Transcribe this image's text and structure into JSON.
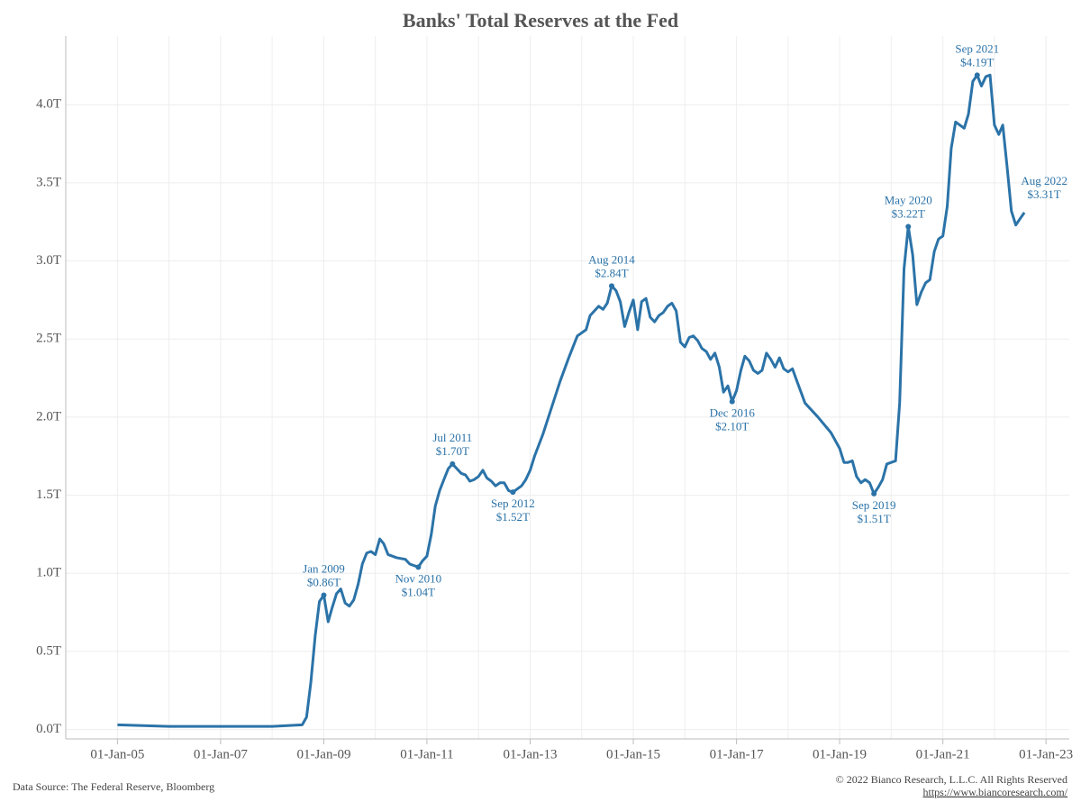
{
  "chart_data": {
    "type": "line",
    "title": "Banks' Total Reserves at the Fed",
    "source": "Data Source: The Federal Reserve, Bloomberg",
    "copyright": "© 2022 Bianco Research, L.L.C. All Rights Reserved",
    "url": "https://www.biancoresearch.com/",
    "xlim": [
      "2004-01-01",
      "2023-06-15"
    ],
    "xticks": [
      {
        "value": "2005-01-01",
        "label": "01-Jan-05"
      },
      {
        "value": "2007-01-01",
        "label": "01-Jan-07"
      },
      {
        "value": "2009-01-01",
        "label": "01-Jan-09"
      },
      {
        "value": "2011-01-01",
        "label": "01-Jan-11"
      },
      {
        "value": "2013-01-01",
        "label": "01-Jan-13"
      },
      {
        "value": "2015-01-01",
        "label": "01-Jan-15"
      },
      {
        "value": "2017-01-01",
        "label": "01-Jan-17"
      },
      {
        "value": "2019-01-01",
        "label": "01-Jan-19"
      },
      {
        "value": "2021-01-01",
        "label": "01-Jan-21"
      },
      {
        "value": "2023-01-01",
        "label": "01-Jan-23"
      }
    ],
    "xgrid_minor": [
      "2004-01-01",
      "2006-01-01",
      "2008-01-01",
      "2010-01-01",
      "2012-01-01",
      "2014-01-01",
      "2016-01-01",
      "2018-01-01",
      "2020-01-01",
      "2022-01-01"
    ],
    "ylim": [
      -0.06,
      4.44
    ],
    "yticks": [
      {
        "value": 0,
        "label": "0.0T"
      },
      {
        "value": 0.5,
        "label": "0.5T"
      },
      {
        "value": 1,
        "label": "1.0T"
      },
      {
        "value": 1.5,
        "label": "1.5T"
      },
      {
        "value": 2,
        "label": "2.0T"
      },
      {
        "value": 2.5,
        "label": "2.5T"
      },
      {
        "value": 3,
        "label": "3.0T"
      },
      {
        "value": 3.5,
        "label": "3.5T"
      },
      {
        "value": 4,
        "label": "4.0T"
      }
    ],
    "grid": true,
    "x": [
      "2005-01-01",
      "2006-01-01",
      "2007-01-01",
      "2008-01-01",
      "2008-08-01",
      "2008-09-01",
      "2008-10-01",
      "2008-11-01",
      "2008-12-01",
      "2009-01-01",
      "2009-02-01",
      "2009-03-01",
      "2009-04-01",
      "2009-05-01",
      "2009-06-01",
      "2009-07-01",
      "2009-08-01",
      "2009-09-01",
      "2009-10-01",
      "2009-11-01",
      "2009-12-01",
      "2010-01-01",
      "2010-02-01",
      "2010-03-01",
      "2010-04-01",
      "2010-06-01",
      "2010-08-01",
      "2010-09-01",
      "2010-10-01",
      "2010-11-01",
      "2010-12-01",
      "2011-01-01",
      "2011-02-01",
      "2011-03-01",
      "2011-04-01",
      "2011-05-01",
      "2011-06-01",
      "2011-07-01",
      "2011-08-01",
      "2011-09-01",
      "2011-10-01",
      "2011-11-01",
      "2011-12-01",
      "2012-01-01",
      "2012-02-01",
      "2012-03-01",
      "2012-04-01",
      "2012-05-01",
      "2012-06-01",
      "2012-07-01",
      "2012-08-01",
      "2012-09-01",
      "2012-10-01",
      "2012-11-01",
      "2012-12-01",
      "2013-01-01",
      "2013-02-01",
      "2013-04-01",
      "2013-06-01",
      "2013-08-01",
      "2013-10-01",
      "2013-12-01",
      "2014-02-01",
      "2014-03-01",
      "2014-05-01",
      "2014-06-01",
      "2014-07-01",
      "2014-08-01",
      "2014-09-01",
      "2014-10-01",
      "2014-11-01",
      "2014-12-01",
      "2015-01-01",
      "2015-02-01",
      "2015-03-01",
      "2015-04-01",
      "2015-05-01",
      "2015-06-01",
      "2015-07-01",
      "2015-08-01",
      "2015-09-01",
      "2015-10-01",
      "2015-11-01",
      "2015-12-01",
      "2016-01-01",
      "2016-02-01",
      "2016-03-01",
      "2016-04-01",
      "2016-05-01",
      "2016-06-01",
      "2016-07-01",
      "2016-08-01",
      "2016-09-01",
      "2016-10-01",
      "2016-11-01",
      "2016-12-01",
      "2017-01-01",
      "2017-02-01",
      "2017-03-01",
      "2017-04-01",
      "2017-05-01",
      "2017-06-01",
      "2017-07-01",
      "2017-08-01",
      "2017-09-01",
      "2017-10-01",
      "2017-11-01",
      "2017-12-01",
      "2018-01-01",
      "2018-02-01",
      "2018-03-01",
      "2018-05-01",
      "2018-08-01",
      "2018-11-01",
      "2019-01-01",
      "2019-02-01",
      "2019-03-01",
      "2019-04-01",
      "2019-05-01",
      "2019-06-01",
      "2019-07-01",
      "2019-08-01",
      "2019-09-01",
      "2019-10-01",
      "2019-11-01",
      "2019-12-01",
      "2020-01-01",
      "2020-02-01",
      "2020-03-01",
      "2020-04-01",
      "2020-05-01",
      "2020-06-01",
      "2020-07-01",
      "2020-08-01",
      "2020-09-01",
      "2020-10-01",
      "2020-11-01",
      "2020-12-01",
      "2021-01-01",
      "2021-02-01",
      "2021-03-01",
      "2021-04-01",
      "2021-05-01",
      "2021-06-01",
      "2021-07-01",
      "2021-08-01",
      "2021-09-01",
      "2021-10-01",
      "2021-11-01",
      "2021-12-01",
      "2022-01-01",
      "2022-02-01",
      "2022-03-01",
      "2022-04-01",
      "2022-05-01",
      "2022-06-01",
      "2022-07-01",
      "2022-08-01"
    ],
    "series": [
      {
        "name": "Total Reserves",
        "color": "#2b73a8",
        "values": [
          0.03,
          0.02,
          0.02,
          0.02,
          0.03,
          0.08,
          0.3,
          0.6,
          0.82,
          0.86,
          0.69,
          0.78,
          0.87,
          0.9,
          0.81,
          0.79,
          0.83,
          0.93,
          1.06,
          1.13,
          1.14,
          1.12,
          1.22,
          1.19,
          1.12,
          1.1,
          1.09,
          1.06,
          1.05,
          1.04,
          1.08,
          1.11,
          1.25,
          1.43,
          1.53,
          1.6,
          1.67,
          1.7,
          1.67,
          1.64,
          1.63,
          1.59,
          1.6,
          1.62,
          1.66,
          1.61,
          1.59,
          1.56,
          1.58,
          1.58,
          1.53,
          1.52,
          1.54,
          1.56,
          1.6,
          1.66,
          1.75,
          1.89,
          2.06,
          2.23,
          2.38,
          2.52,
          2.56,
          2.65,
          2.71,
          2.69,
          2.73,
          2.84,
          2.81,
          2.74,
          2.58,
          2.67,
          2.75,
          2.56,
          2.74,
          2.76,
          2.64,
          2.61,
          2.65,
          2.67,
          2.71,
          2.73,
          2.68,
          2.48,
          2.45,
          2.51,
          2.52,
          2.49,
          2.44,
          2.42,
          2.37,
          2.41,
          2.32,
          2.16,
          2.2,
          2.1,
          2.17,
          2.3,
          2.39,
          2.36,
          2.3,
          2.28,
          2.3,
          2.41,
          2.37,
          2.32,
          2.38,
          2.31,
          2.29,
          2.31,
          2.24,
          2.09,
          2.0,
          1.9,
          1.8,
          1.71,
          1.71,
          1.72,
          1.62,
          1.58,
          1.6,
          1.58,
          1.51,
          1.55,
          1.6,
          1.7,
          1.71,
          1.72,
          2.09,
          2.95,
          3.22,
          3.04,
          2.72,
          2.8,
          2.86,
          2.88,
          3.06,
          3.14,
          3.16,
          3.35,
          3.72,
          3.89,
          3.87,
          3.85,
          3.94,
          4.15,
          4.19,
          4.12,
          4.18,
          4.19,
          3.87,
          3.81,
          3.87,
          3.6,
          3.32,
          3.23,
          3.27,
          3.31
        ]
      }
    ],
    "annotations": [
      {
        "x": "2009-01-01",
        "value": 0.86,
        "date_label": "Jan 2009",
        "value_label": "$0.86T",
        "position": "above",
        "dot": true
      },
      {
        "x": "2010-11-01",
        "value": 1.04,
        "date_label": "Nov 2010",
        "value_label": "$1.04T",
        "position": "below",
        "dot": true
      },
      {
        "x": "2011-07-01",
        "value": 1.7,
        "date_label": "Jul 2011",
        "value_label": "$1.70T",
        "position": "above",
        "dot": true
      },
      {
        "x": "2012-09-01",
        "value": 1.52,
        "date_label": "Sep 2012",
        "value_label": "$1.52T",
        "position": "below",
        "dot": true
      },
      {
        "x": "2014-08-01",
        "value": 2.84,
        "date_label": "Aug 2014",
        "value_label": "$2.84T",
        "position": "above",
        "dot": true
      },
      {
        "x": "2016-12-01",
        "value": 2.1,
        "date_label": "Dec 2016",
        "value_label": "$2.10T",
        "position": "below",
        "dot": true
      },
      {
        "x": "2019-09-01",
        "value": 1.51,
        "date_label": "Sep 2019",
        "value_label": "$1.51T",
        "position": "below",
        "dot": true
      },
      {
        "x": "2020-05-01",
        "value": 3.22,
        "date_label": "May 2020",
        "value_label": "$3.22T",
        "position": "above",
        "dot": true
      },
      {
        "x": "2021-09-01",
        "value": 4.19,
        "date_label": "Sep 2021",
        "value_label": "$4.19T",
        "position": "above",
        "dot": true
      },
      {
        "x": "2022-08-01",
        "value": 3.31,
        "date_label": "Aug 2022",
        "value_label": "$3.31T",
        "position": "right",
        "dot": false
      }
    ]
  }
}
